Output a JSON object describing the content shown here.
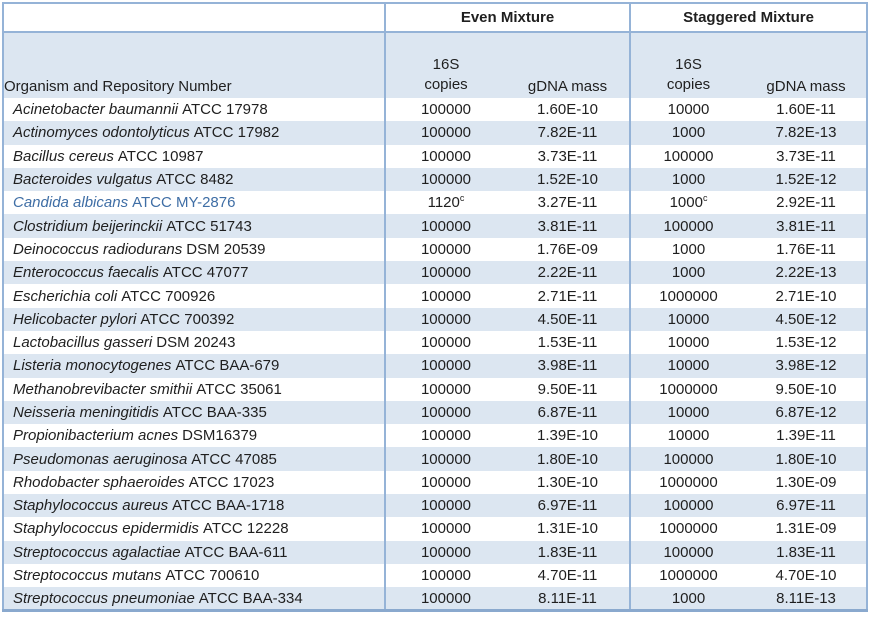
{
  "table": {
    "column_groups": [
      {
        "label": "Even Mixture"
      },
      {
        "label": "Staggered Mixture"
      }
    ],
    "headers": {
      "organism": "Organism and Repository Number",
      "copies_line1": "16S",
      "copies_line2": "copies",
      "gdna": "gDNA mass"
    },
    "rows": [
      {
        "name": "Acinetobacter baumannii",
        "id": "ATCC 17978",
        "even_copies": "100000",
        "even_gdna": "1.60E-10",
        "stag_copies": "10000",
        "stag_gdna": "1.60E-11"
      },
      {
        "name": "Actinomyces odontolyticus",
        "id": "ATCC 17982",
        "even_copies": "100000",
        "even_gdna": "7.82E-11",
        "stag_copies": "1000",
        "stag_gdna": "7.82E-13"
      },
      {
        "name": "Bacillus cereus",
        "id": "ATCC 10987",
        "even_copies": "100000",
        "even_gdna": "3.73E-11",
        "stag_copies": "100000",
        "stag_gdna": "3.73E-11"
      },
      {
        "name": "Bacteroides vulgatus",
        "id": "ATCC 8482",
        "even_copies": "100000",
        "even_gdna": "1.52E-10",
        "stag_copies": "1000",
        "stag_gdna": "1.52E-12"
      },
      {
        "name": "Candida albicans",
        "id": "ATCC MY-2876",
        "highlight": true,
        "even_copies": "1120",
        "even_copies_sup": "c",
        "even_gdna": "3.27E-11",
        "stag_copies": "1000",
        "stag_copies_sup": "c",
        "stag_gdna": "2.92E-11"
      },
      {
        "name": "Clostridium beijerinckii",
        "id": "ATCC 51743",
        "even_copies": "100000",
        "even_gdna": "3.81E-11",
        "stag_copies": "100000",
        "stag_gdna": "3.81E-11"
      },
      {
        "name": "Deinococcus radiodurans",
        "id": "DSM 20539",
        "even_copies": "100000",
        "even_gdna": "1.76E-09",
        "stag_copies": "1000",
        "stag_gdna": "1.76E-11"
      },
      {
        "name": "Enterococcus faecalis",
        "id": "ATCC 47077",
        "even_copies": "100000",
        "even_gdna": "2.22E-11",
        "stag_copies": "1000",
        "stag_gdna": "2.22E-13"
      },
      {
        "name": "Escherichia coli",
        "id": "ATCC 700926",
        "even_copies": "100000",
        "even_gdna": "2.71E-11",
        "stag_copies": "1000000",
        "stag_gdna": "2.71E-10"
      },
      {
        "name": "Helicobacter pylori",
        "id": "ATCC 700392",
        "even_copies": "100000",
        "even_gdna": "4.50E-11",
        "stag_copies": "10000",
        "stag_gdna": "4.50E-12"
      },
      {
        "name": "Lactobacillus gasseri",
        "id": "DSM 20243",
        "even_copies": "100000",
        "even_gdna": "1.53E-11",
        "stag_copies": "10000",
        "stag_gdna": "1.53E-12"
      },
      {
        "name": "Listeria monocytogenes",
        "id": "ATCC BAA-679",
        "even_copies": "100000",
        "even_gdna": "3.98E-11",
        "stag_copies": "10000",
        "stag_gdna": "3.98E-12"
      },
      {
        "name": "Methanobrevibacter smithii",
        "id": "ATCC 35061",
        "even_copies": "100000",
        "even_gdna": "9.50E-11",
        "stag_copies": "1000000",
        "stag_gdna": "9.50E-10"
      },
      {
        "name": "Neisseria meningitidis",
        "id": "ATCC BAA-335",
        "even_copies": "100000",
        "even_gdna": "6.87E-11",
        "stag_copies": "10000",
        "stag_gdna": "6.87E-12"
      },
      {
        "name": "Propionibacterium acnes",
        "id": "DSM16379",
        "even_copies": "100000",
        "even_gdna": "1.39E-10",
        "stag_copies": "10000",
        "stag_gdna": "1.39E-11"
      },
      {
        "name": "Pseudomonas aeruginosa",
        "id": "ATCC 47085",
        "even_copies": "100000",
        "even_gdna": "1.80E-10",
        "stag_copies": "100000",
        "stag_gdna": "1.80E-10"
      },
      {
        "name": "Rhodobacter sphaeroides",
        "id": "ATCC 17023",
        "even_copies": "100000",
        "even_gdna": "1.30E-10",
        "stag_copies": "1000000",
        "stag_gdna": "1.30E-09"
      },
      {
        "name": "Staphylococcus aureus",
        "id": "ATCC BAA-1718",
        "even_copies": "100000",
        "even_gdna": "6.97E-11",
        "stag_copies": "100000",
        "stag_gdna": "6.97E-11"
      },
      {
        "name": "Staphylococcus epidermidis",
        "id": "ATCC 12228",
        "even_copies": "100000",
        "even_gdna": "1.31E-10",
        "stag_copies": "1000000",
        "stag_gdna": "1.31E-09"
      },
      {
        "name": "Streptococcus agalactiae",
        "id": "ATCC BAA-611",
        "even_copies": "100000",
        "even_gdna": "1.83E-11",
        "stag_copies": "100000",
        "stag_gdna": "1.83E-11"
      },
      {
        "name": "Streptococcus mutans",
        "id": "ATCC 700610",
        "even_copies": "100000",
        "even_gdna": "4.70E-11",
        "stag_copies": "1000000",
        "stag_gdna": "4.70E-10"
      },
      {
        "name": "Streptococcus pneumoniae",
        "id": "ATCC BAA-334",
        "even_copies": "100000",
        "even_gdna": "8.11E-11",
        "stag_copies": "1000",
        "stag_gdna": "8.11E-13"
      }
    ]
  },
  "colors": {
    "stripe": "#DCE6F1",
    "border": "#95B3D7",
    "highlight_text": "#3F6EA5"
  }
}
